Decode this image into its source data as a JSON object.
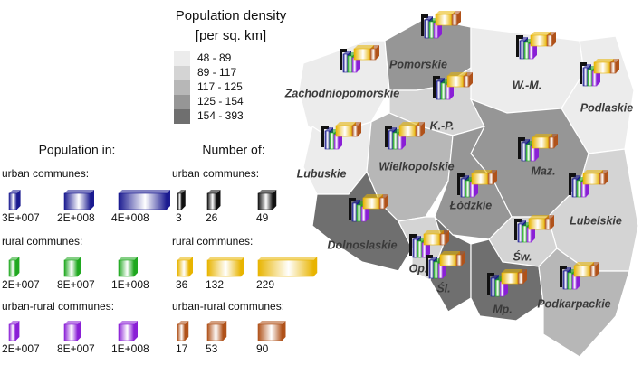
{
  "title": "Population density",
  "subtitle": "[per sq. km]",
  "density_legend": [
    {
      "label": "48 - 89",
      "color": "#ececec"
    },
    {
      "label": "89 - 117",
      "color": "#d4d4d4"
    },
    {
      "label": "117 - 125",
      "color": "#b7b7b7"
    },
    {
      "label": "125 - 154",
      "color": "#969696"
    },
    {
      "label": "154 - 393",
      "color": "#6f6f6f"
    }
  ],
  "population_legend": {
    "title": "Population in:",
    "groups": [
      {
        "label": "urban communes:",
        "color": "#1a1a90",
        "items": [
          {
            "value": 30000000,
            "label": "3E+007"
          },
          {
            "value": 200000000,
            "label": "2E+008"
          },
          {
            "value": 400000000,
            "label": "4E+008"
          }
        ]
      },
      {
        "label": "rural communes:",
        "color": "#1fa81f",
        "items": [
          {
            "value": 20000000,
            "label": "2E+007"
          },
          {
            "value": 80000000,
            "label": "8E+007"
          },
          {
            "value": 100000000,
            "label": "1E+008"
          }
        ]
      },
      {
        "label": "urban-rural communes:",
        "color": "#8a1fd6",
        "items": [
          {
            "value": 20000000,
            "label": "2E+007"
          },
          {
            "value": 80000000,
            "label": "8E+007"
          },
          {
            "value": 100000000,
            "label": "1E+008"
          }
        ]
      }
    ]
  },
  "count_legend": {
    "title": "Number of:",
    "groups": [
      {
        "label": "urban communes:",
        "color": "#111111",
        "items": [
          3,
          26,
          49
        ]
      },
      {
        "label": "rural communes:",
        "color": "#e8b400",
        "items": [
          36,
          132,
          229
        ]
      },
      {
        "label": "urban-rural communes:",
        "color": "#b0521a",
        "items": [
          17,
          53,
          90
        ]
      }
    ]
  },
  "regions": [
    {
      "name": "Zachodniopomorskie",
      "color": "#ececec"
    },
    {
      "name": "Pomorskie",
      "color": "#969696"
    },
    {
      "name": "W.-M.",
      "color": "#ececec"
    },
    {
      "name": "Podlaskie",
      "color": "#ececec"
    },
    {
      "name": "K.-P.",
      "color": "#d4d4d4"
    },
    {
      "name": "Lubuskie",
      "color": "#ececec"
    },
    {
      "name": "Wielkopolskie",
      "color": "#b7b7b7"
    },
    {
      "name": "Maz.",
      "color": "#969696"
    },
    {
      "name": "Łódzkie",
      "color": "#969696"
    },
    {
      "name": "Lubelskie",
      "color": "#d4d4d4"
    },
    {
      "name": "Dolnoslaskie",
      "color": "#6f6f6f"
    },
    {
      "name": "Op.",
      "color": "#d4d4d4"
    },
    {
      "name": "Śl.",
      "color": "#6f6f6f"
    },
    {
      "name": "Św.",
      "color": "#d4d4d4"
    },
    {
      "name": "Mp.",
      "color": "#6f6f6f"
    },
    {
      "name": "Podkarpackie",
      "color": "#b7b7b7"
    }
  ]
}
